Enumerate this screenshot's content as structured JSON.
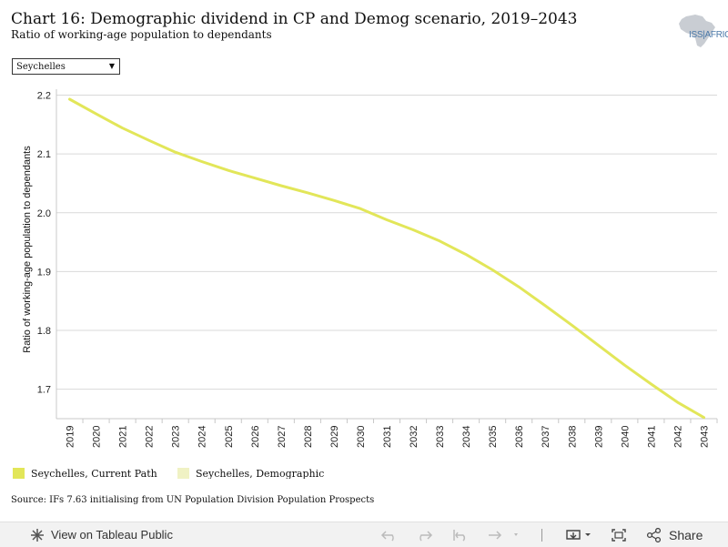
{
  "header": {
    "title": "Chart 16: Demographic dividend in CP and Demog scenario, 2019–2043",
    "subtitle": "Ratio of working-age population to dependants",
    "logo_text": "ISS|AFRICA"
  },
  "filter": {
    "selected": "Seychelles"
  },
  "legend": {
    "items": [
      {
        "label": "Seychelles, Current Path",
        "color": "#e2e659"
      },
      {
        "label": "Seychelles, Demographic",
        "color": "#f0f2c4"
      }
    ]
  },
  "source": "Source: IFs 7.63 initialising from UN Population Division Population Prospects",
  "toolbar": {
    "view_label": "View on Tableau Public",
    "share_label": "Share"
  },
  "chart_data": {
    "type": "line",
    "title": "",
    "ylabel": "Ratio of working-age population to dependants",
    "xlabel": "",
    "ylim": [
      1.65,
      2.21
    ],
    "yticks": [
      1.7,
      1.8,
      1.9,
      2.0,
      2.1,
      2.2
    ],
    "grid": true,
    "x": [
      2019,
      2020,
      2021,
      2022,
      2023,
      2024,
      2025,
      2026,
      2027,
      2028,
      2029,
      2030,
      2031,
      2032,
      2033,
      2034,
      2035,
      2036,
      2037,
      2038,
      2039,
      2040,
      2041,
      2042,
      2043
    ],
    "series": [
      {
        "name": "Seychelles, Current Path",
        "color": "#e2e659",
        "values": [
          2.193,
          2.168,
          2.144,
          2.123,
          2.103,
          2.087,
          2.072,
          2.059,
          2.046,
          2.034,
          2.021,
          2.007,
          1.988,
          1.971,
          1.952,
          1.929,
          1.903,
          1.874,
          1.842,
          1.809,
          1.775,
          1.741,
          1.709,
          1.678,
          1.652
        ]
      }
    ]
  }
}
